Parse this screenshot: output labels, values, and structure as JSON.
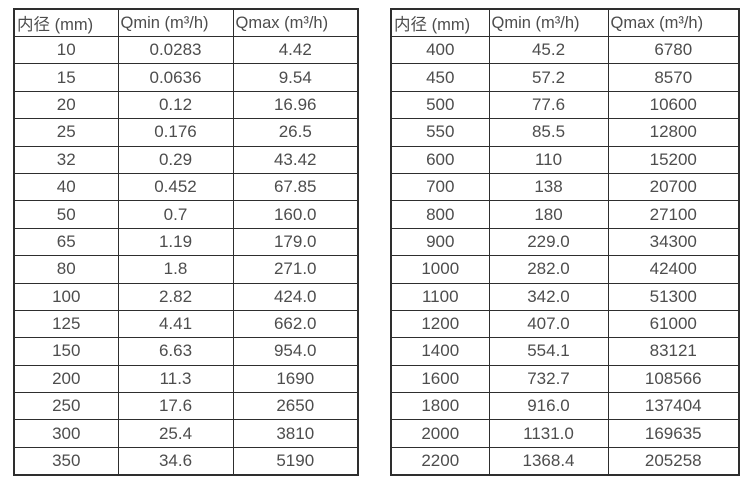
{
  "colors": {
    "text": "#4d4d4d",
    "border": "#2e2e2e",
    "background": "#ffffff"
  },
  "tables": [
    {
      "name": "flow-spec-table-small-diameters",
      "headers": [
        "内径 (mm)",
        "Qmin (m³/h)",
        "Qmax (m³/h)"
      ],
      "rows": [
        [
          "10",
          "0.0283",
          "4.42"
        ],
        [
          "15",
          "0.0636",
          "9.54"
        ],
        [
          "20",
          "0.12",
          "16.96"
        ],
        [
          "25",
          "0.176",
          "26.5"
        ],
        [
          "32",
          "0.29",
          "43.42"
        ],
        [
          "40",
          "0.452",
          "67.85"
        ],
        [
          "50",
          "0.7",
          "160.0"
        ],
        [
          "65",
          "1.19",
          "179.0"
        ],
        [
          "80",
          "1.8",
          "271.0"
        ],
        [
          "100",
          "2.82",
          "424.0"
        ],
        [
          "125",
          "4.41",
          "662.0"
        ],
        [
          "150",
          "6.63",
          "954.0"
        ],
        [
          "200",
          "11.3",
          "1690"
        ],
        [
          "250",
          "17.6",
          "2650"
        ],
        [
          "300",
          "25.4",
          "3810"
        ],
        [
          "350",
          "34.6",
          "5190"
        ]
      ]
    },
    {
      "name": "flow-spec-table-large-diameters",
      "headers": [
        "内径 (mm)",
        "Qmin (m³/h)",
        "Qmax (m³/h)"
      ],
      "rows": [
        [
          "400",
          "45.2",
          "6780"
        ],
        [
          "450",
          "57.2",
          "8570"
        ],
        [
          "500",
          "77.6",
          "10600"
        ],
        [
          "550",
          "85.5",
          "12800"
        ],
        [
          "600",
          "110",
          "15200"
        ],
        [
          "700",
          "138",
          "20700"
        ],
        [
          "800",
          "180",
          "27100"
        ],
        [
          "900",
          "229.0",
          "34300"
        ],
        [
          "1000",
          "282.0",
          "42400"
        ],
        [
          "1100",
          "342.0",
          "51300"
        ],
        [
          "1200",
          "407.0",
          "61000"
        ],
        [
          "1400",
          "554.1",
          "83121"
        ],
        [
          "1600",
          "732.7",
          "108566"
        ],
        [
          "1800",
          "916.0",
          "137404"
        ],
        [
          "2000",
          "1131.0",
          "169635"
        ],
        [
          "2200",
          "1368.4",
          "205258"
        ]
      ]
    }
  ]
}
